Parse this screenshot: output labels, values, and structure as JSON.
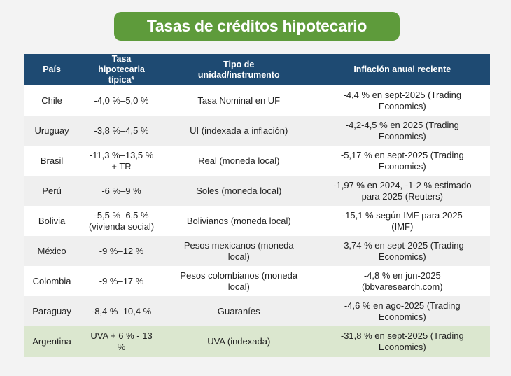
{
  "title": "Tasas de créditos hipotecario",
  "headers": [
    "País",
    "Tasa hipotecaria típica*",
    "Tipo de unidad/instrumento",
    "Inflación anual reciente"
  ],
  "rows": [
    [
      "Chile",
      "-4,0 %–5,0 %",
      "Tasa Nominal en UF",
      "-4,4 % en sept-2025 (Trading Economics)"
    ],
    [
      "Uruguay",
      "-3,8 %–4,5 %",
      "UI (indexada a inflación)",
      "-4,2-4,5 % en 2025 (Trading Economics)"
    ],
    [
      "Brasil",
      "-11,3 %–13,5 % + TR",
      "Real (moneda local)",
      "-5,17 % en sept-2025 (Trading Economics)"
    ],
    [
      "Perú",
      "-6 %–9 %",
      "Soles (moneda local)",
      "-1,97 % en 2024, -1-2 % estimado para 2025 (Reuters)"
    ],
    [
      "Bolivia",
      "-5,5 %–6,5 % (vivienda social)",
      "Bolivianos (moneda local)",
      "-15,1 % según IMF para 2025 (IMF)"
    ],
    [
      "México",
      "-9 %–12 %",
      "Pesos mexicanos (moneda local)",
      "-3,74 % en sept-2025 (Trading Economics)"
    ],
    [
      "Colombia",
      "-9 %–17 %",
      "Pesos colombianos (moneda local)",
      "-4,8 % en jun-2025 (bbvaresearch.com)"
    ],
    [
      "Paraguay",
      "-8,4 %–10,4 %",
      "Guaraníes",
      "-4,6 % en ago-2025 (Trading Economics)"
    ],
    [
      "Argentina",
      "UVA + 6 % - 13 %",
      "UVA (indexada)",
      "-31,8 % en sept-2025 (Trading Economics)"
    ]
  ],
  "colors": {
    "title_bg": "#5e9b3b",
    "header_bg": "#1e4a72",
    "highlight": "#dbe7cf"
  }
}
